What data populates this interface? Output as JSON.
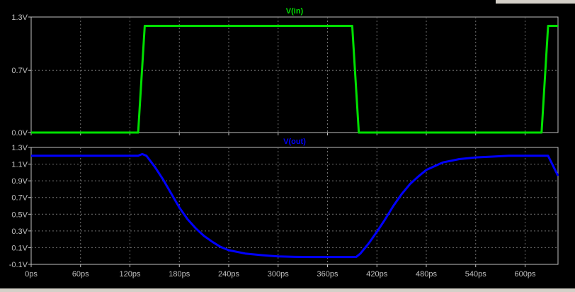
{
  "app": {
    "window_button_color": "#d4d0c8"
  },
  "colors": {
    "background": "#000000",
    "frame": "#c0c0c0",
    "grid": "#707070",
    "v_in": "#00e000",
    "v_out": "#0000ff"
  },
  "chart_data": [
    {
      "type": "line",
      "series": [
        {
          "name": "V(in)",
          "color": "#00e000",
          "x": [
            0,
            130,
            138,
            390,
            398,
            620,
            628,
            640
          ],
          "y": [
            0.0,
            0.0,
            1.2,
            1.2,
            0.0,
            0.0,
            1.2,
            1.2
          ]
        }
      ],
      "yticks": [
        "1.3V",
        "0.7V",
        "0.0V"
      ],
      "ytick_values": [
        1.3,
        0.7,
        0.0
      ],
      "ylim": [
        0.0,
        1.3
      ],
      "xlim": [
        0,
        640
      ],
      "grid": true
    },
    {
      "type": "line",
      "series": [
        {
          "name": "V(out)",
          "color": "#0000ff",
          "x": [
            0,
            130,
            135,
            140,
            150,
            160,
            170,
            180,
            190,
            200,
            210,
            220,
            230,
            240,
            260,
            280,
            300,
            320,
            340,
            360,
            380,
            390,
            395,
            400,
            410,
            420,
            430,
            440,
            450,
            460,
            470,
            480,
            500,
            520,
            540,
            560,
            580,
            600,
            620,
            628,
            640
          ],
          "y": [
            1.2,
            1.2,
            1.22,
            1.2,
            1.07,
            0.92,
            0.75,
            0.58,
            0.44,
            0.33,
            0.24,
            0.17,
            0.11,
            0.07,
            0.03,
            0.01,
            -0.005,
            -0.01,
            -0.012,
            -0.012,
            -0.012,
            -0.012,
            -0.01,
            0.03,
            0.15,
            0.29,
            0.44,
            0.6,
            0.74,
            0.86,
            0.95,
            1.03,
            1.12,
            1.16,
            1.18,
            1.19,
            1.2,
            1.2,
            1.2,
            1.2,
            0.96
          ]
        }
      ],
      "yticks": [
        "1.3V",
        "1.1V",
        "0.9V",
        "0.7V",
        "0.5V",
        "0.3V",
        "0.1V",
        "-0.1V"
      ],
      "ytick_values": [
        1.3,
        1.1,
        0.9,
        0.7,
        0.5,
        0.3,
        0.1,
        -0.1
      ],
      "ylim": [
        -0.1,
        1.3
      ],
      "xlim": [
        0,
        640
      ],
      "xticks": [
        "0ps",
        "60ps",
        "120ps",
        "180ps",
        "240ps",
        "300ps",
        "360ps",
        "420ps",
        "480ps",
        "540ps",
        "600ps"
      ],
      "xtick_values": [
        0,
        60,
        120,
        180,
        240,
        300,
        360,
        420,
        480,
        540,
        600
      ],
      "grid": true
    }
  ]
}
